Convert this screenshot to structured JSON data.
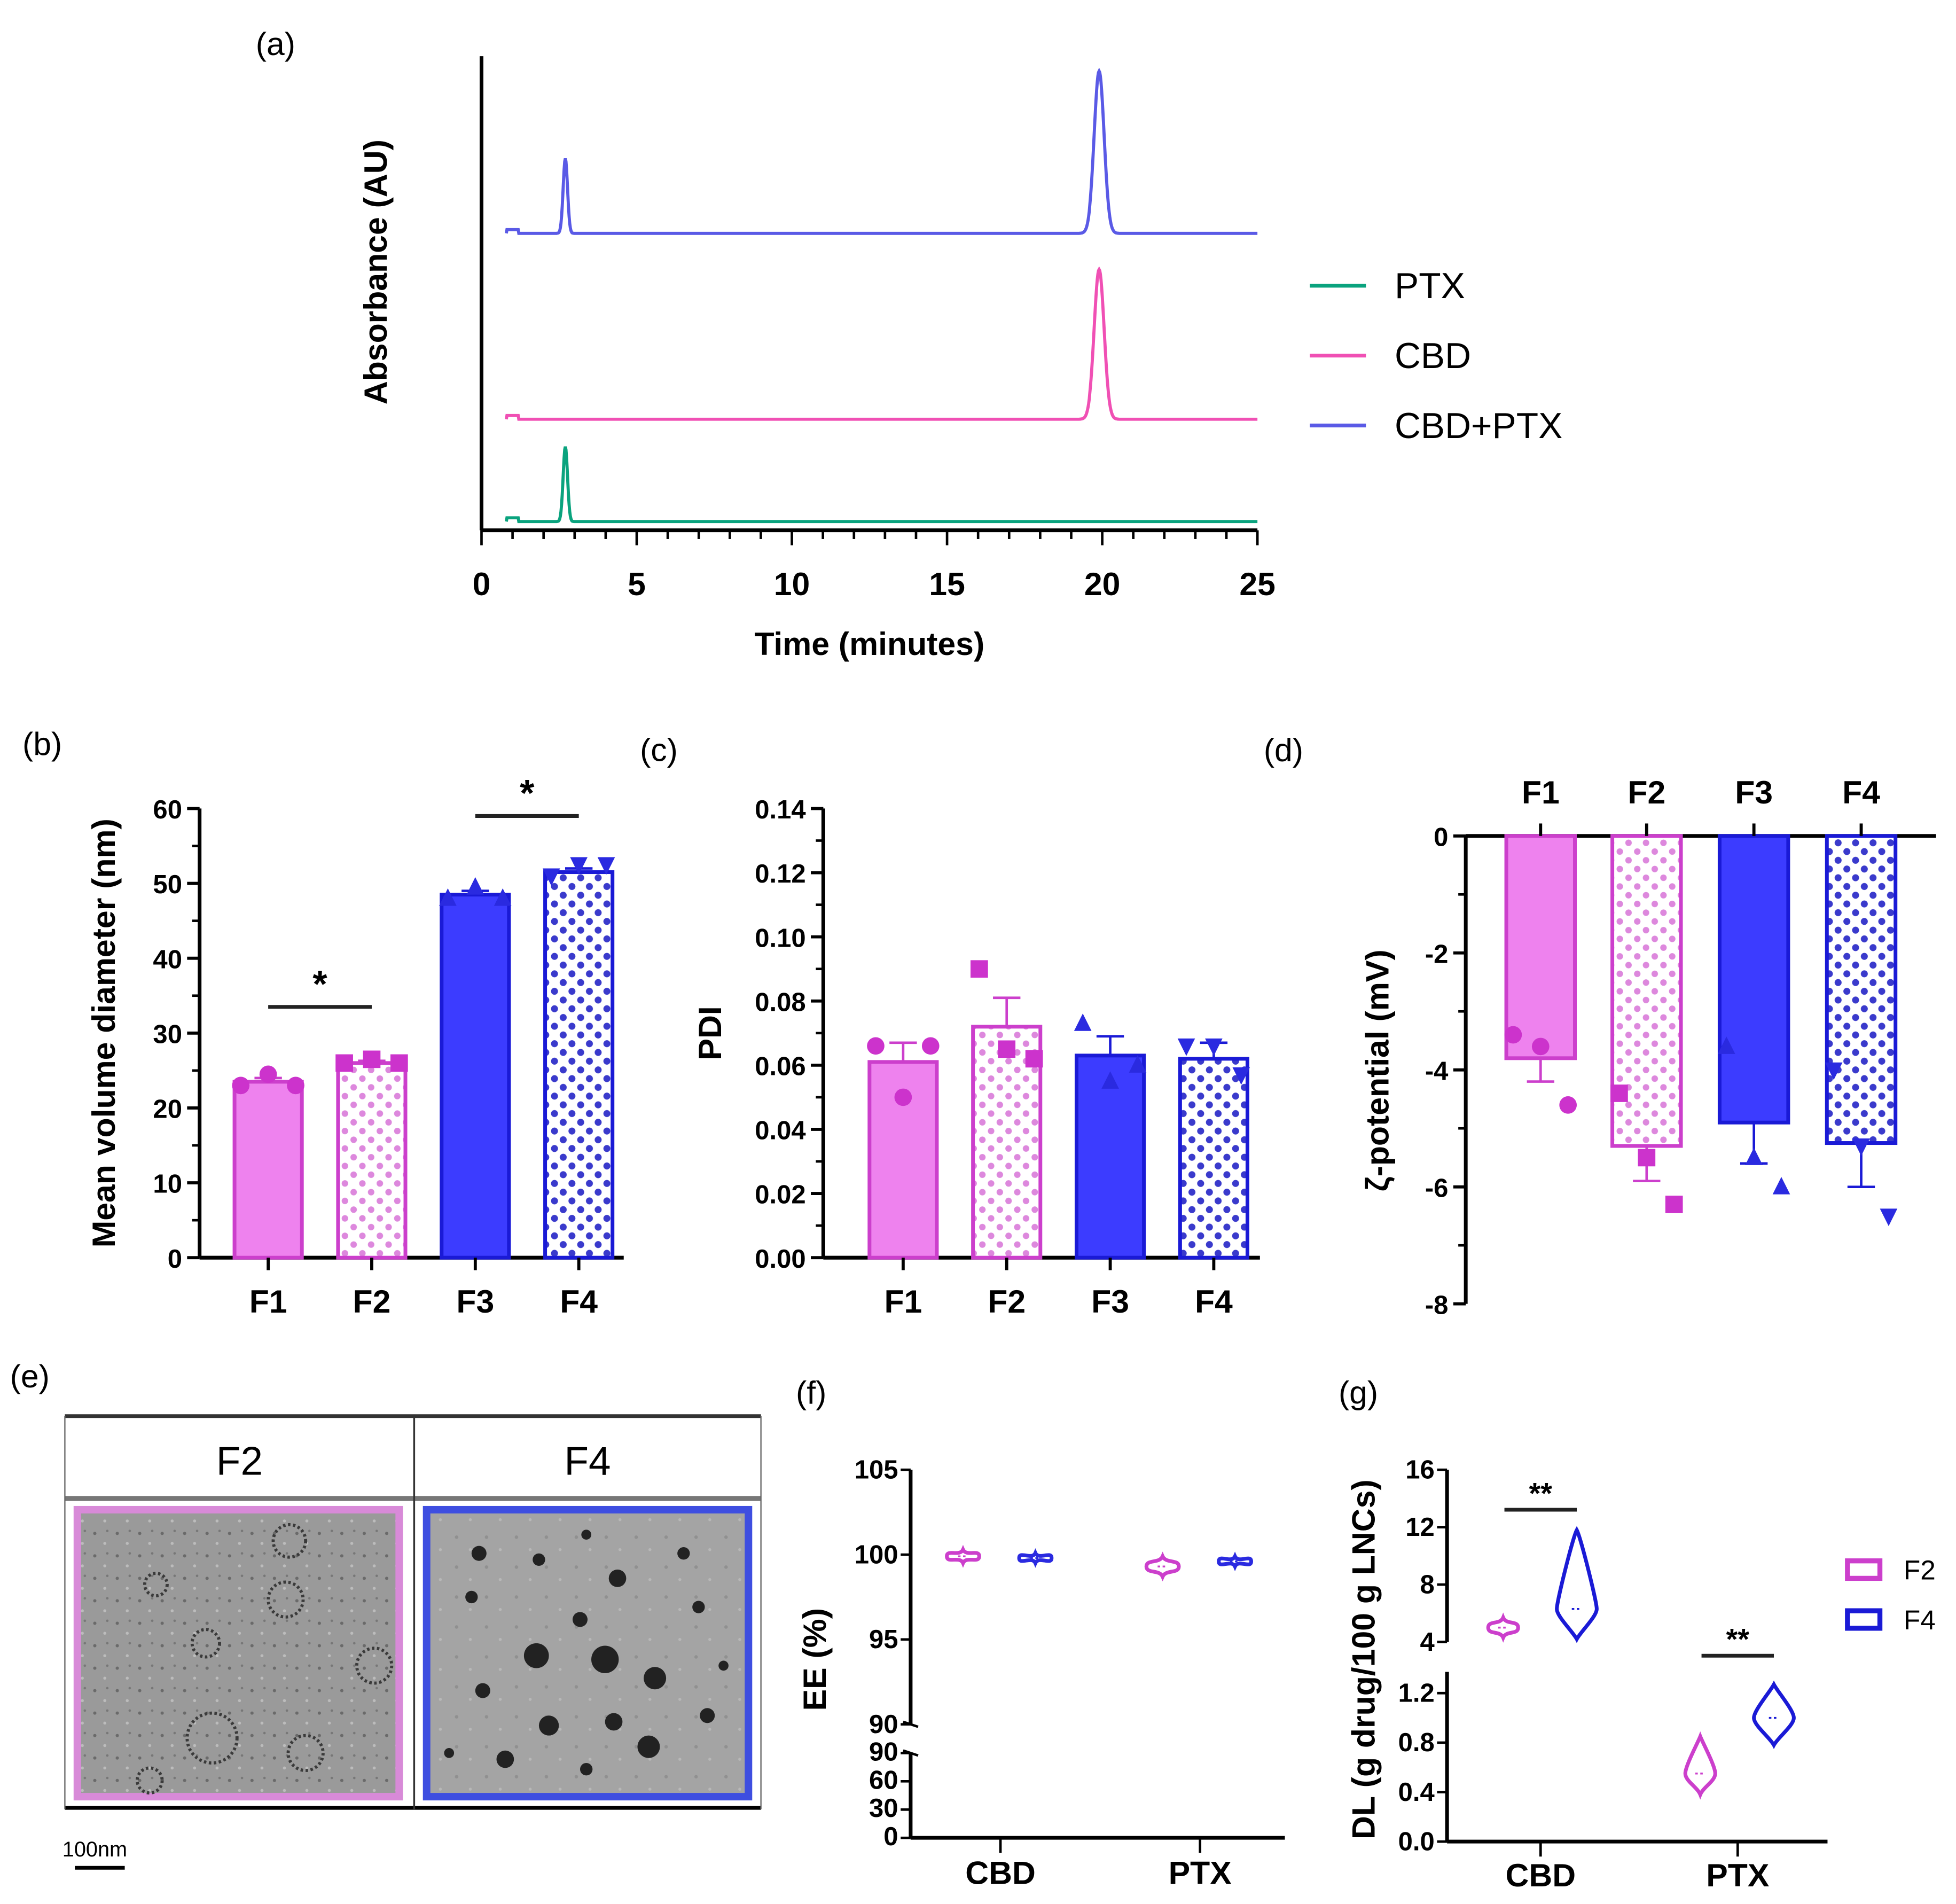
{
  "panels": {
    "a": "(a)",
    "b": "(b)",
    "c": "(c)",
    "d": "(d)",
    "e": "(e)",
    "f": "(f)",
    "g": "(g)"
  },
  "colors": {
    "ptx": "#0aa37e",
    "cbd": "#f050b4",
    "cbd_ptx": "#5a5ae6",
    "f_magenta_fill": "#ee82ee",
    "f_magenta_edge": "#cc3fcc",
    "f_blue_fill": "#3c3cff",
    "f_blue_edge": "#1a1ad6",
    "f2_border": "#d88ad8",
    "f4_border": "#3e4ee0"
  },
  "tem": {
    "headers": [
      "F2",
      "F4"
    ],
    "scale_bar": "100nm"
  },
  "chart_data": [
    {
      "id": "a",
      "type": "line",
      "title": "",
      "xlabel": "Time (minutes)",
      "ylabel": "Absorbance (AU)",
      "xlim": [
        0,
        25
      ],
      "xticks": [
        "0",
        "5",
        "10",
        "15",
        "20",
        "25"
      ],
      "legend_position": "right",
      "series": [
        {
          "name": "PTX",
          "color_key": "ptx",
          "peaks": [
            {
              "time": 2.7,
              "height": 0.6
            }
          ]
        },
        {
          "name": "CBD",
          "color_key": "cbd",
          "peaks": [
            {
              "time": 19.9,
              "height": 1.2
            }
          ]
        },
        {
          "name": "CBD+PTX",
          "color_key": "cbd_ptx",
          "peaks": [
            {
              "time": 2.7,
              "height": 0.6
            },
            {
              "time": 19.9,
              "height": 1.3
            }
          ]
        }
      ]
    },
    {
      "id": "b",
      "type": "bar",
      "ylabel": "Mean volume diameter (nm)",
      "xlabel": "",
      "ylim": [
        0,
        60
      ],
      "yticks": [
        "0",
        "10",
        "20",
        "30",
        "40",
        "50",
        "60"
      ],
      "categories": [
        "F1",
        "F2",
        "F3",
        "F4"
      ],
      "values": [
        23.5,
        26.0,
        48.5,
        51.5
      ],
      "errors": [
        0.5,
        0.3,
        0.5,
        0.5
      ],
      "points": [
        [
          23,
          24.5,
          23
        ],
        [
          26,
          26.5,
          26
        ],
        [
          48,
          49.5,
          48
        ],
        [
          51,
          52.5,
          52.5
        ]
      ],
      "significance": [
        {
          "pair": [
            "F1",
            "F2"
          ],
          "label": "*"
        },
        {
          "pair": [
            "F3",
            "F4"
          ],
          "label": "*"
        }
      ]
    },
    {
      "id": "c",
      "type": "bar",
      "ylabel": "PDI",
      "xlabel": "",
      "ylim": [
        0,
        0.14
      ],
      "yticks": [
        "0.00",
        "0.02",
        "0.04",
        "0.06",
        "0.08",
        "0.10",
        "0.12",
        "0.14"
      ],
      "categories": [
        "F1",
        "F2",
        "F3",
        "F4"
      ],
      "values": [
        0.061,
        0.072,
        0.063,
        0.062
      ],
      "errors": [
        0.006,
        0.009,
        0.006,
        0.005
      ],
      "points": [
        [
          0.066,
          0.05,
          0.066
        ],
        [
          0.09,
          0.065,
          0.062
        ],
        [
          0.073,
          0.055,
          0.06
        ],
        [
          0.066,
          0.066,
          0.057
        ]
      ]
    },
    {
      "id": "d",
      "type": "bar",
      "ylabel": "ζ-potential (mV)",
      "xlabel": "",
      "ylim": [
        -8,
        0
      ],
      "yticks": [
        "0",
        "-2",
        "-4",
        "-6",
        "-8"
      ],
      "categories": [
        "F1",
        "F2",
        "F3",
        "F4"
      ],
      "values": [
        -3.8,
        -5.3,
        -4.9,
        -5.25
      ],
      "errors": [
        0.4,
        0.6,
        0.7,
        0.75
      ],
      "points": [
        [
          -3.4,
          -3.6,
          -4.6
        ],
        [
          -4.4,
          -5.5,
          -6.3
        ],
        [
          -3.6,
          -5.5,
          -6.0
        ],
        [
          -4.0,
          -5.3,
          -6.5
        ]
      ]
    },
    {
      "id": "f",
      "type": "violin",
      "ylabel": "EE (%)",
      "ylim_upper": [
        90,
        105
      ],
      "yticks_upper": [
        "90",
        "95",
        "100",
        "105"
      ],
      "ylim_lower": [
        0,
        90
      ],
      "yticks_lower": [
        "0",
        "30",
        "60",
        "90"
      ],
      "categories": [
        "CBD",
        "PTX"
      ],
      "series": [
        {
          "name": "F2",
          "values": [
            99.9,
            99.3
          ],
          "spread": [
            0.4,
            0.6
          ]
        },
        {
          "name": "F4",
          "values": [
            99.8,
            99.6
          ],
          "spread": [
            0.3,
            0.3
          ]
        }
      ]
    },
    {
      "id": "g",
      "type": "violin",
      "ylabel": "DL (g drug/100 g LNCs)",
      "ylim_upper": [
        4,
        16
      ],
      "yticks_upper": [
        "4",
        "8",
        "12",
        "16"
      ],
      "ylim_lower": [
        0,
        1.2
      ],
      "yticks_lower": [
        "0.0",
        "0.4",
        "0.8",
        "1.2"
      ],
      "categories": [
        "CBD",
        "PTX"
      ],
      "legend": [
        "F2",
        "F4"
      ],
      "legend_position": "right",
      "series": [
        {
          "name": "F2",
          "values": [
            5.0,
            0.55
          ],
          "range": [
            [
              4.3,
              5.7
            ],
            [
              0.38,
              0.85
            ]
          ]
        },
        {
          "name": "F4",
          "values": [
            6.3,
            1.0
          ],
          "range": [
            [
              4.2,
              11.8
            ],
            [
              0.78,
              1.27
            ]
          ]
        }
      ],
      "significance": [
        {
          "category": "CBD",
          "label": "**"
        },
        {
          "category": "PTX",
          "label": "**"
        }
      ]
    }
  ]
}
